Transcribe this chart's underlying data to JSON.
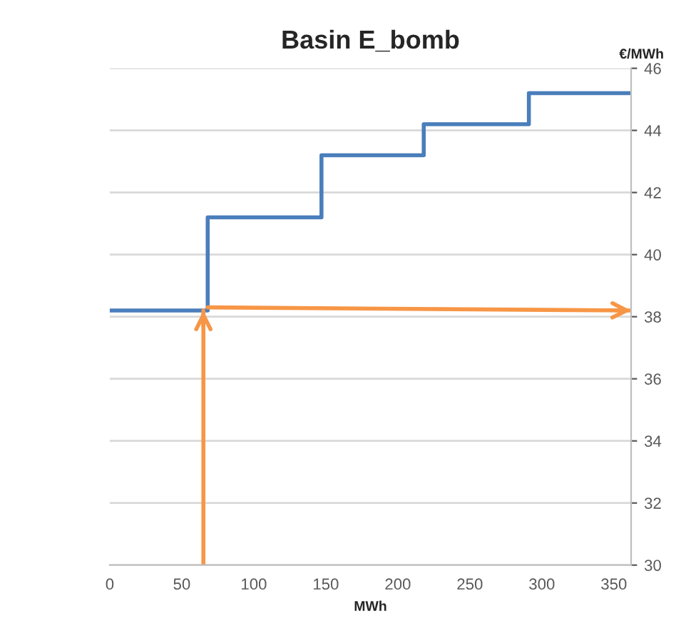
{
  "chart_data": {
    "type": "step",
    "title": "Basin E_bomb",
    "xlabel": "MWh",
    "ylabel": "€/MWh",
    "xlim": [
      0,
      362
    ],
    "xticks": [
      0,
      50,
      100,
      150,
      200,
      250,
      300,
      350
    ],
    "ylim": [
      30,
      46
    ],
    "yticks": [
      30,
      32,
      34,
      36,
      38,
      40,
      42,
      44,
      46
    ],
    "grid": "y",
    "legend": false,
    "marker": "none",
    "line_style": "solid",
    "series": [
      {
        "type": "step",
        "color": "#4a7ebb",
        "x": [
          0,
          68,
          147,
          218,
          291,
          362
        ],
        "values": [
          38.2,
          41.2,
          43.2,
          44.2,
          45.2,
          45.2
        ]
      },
      {
        "type": "line",
        "color": "#f79646",
        "x": [
          65,
          65
        ],
        "values": [
          30,
          38.2
        ]
      },
      {
        "type": "line",
        "color": "#f79646",
        "x": [
          68,
          362
        ],
        "values": [
          38.3,
          38.2
        ]
      }
    ]
  }
}
